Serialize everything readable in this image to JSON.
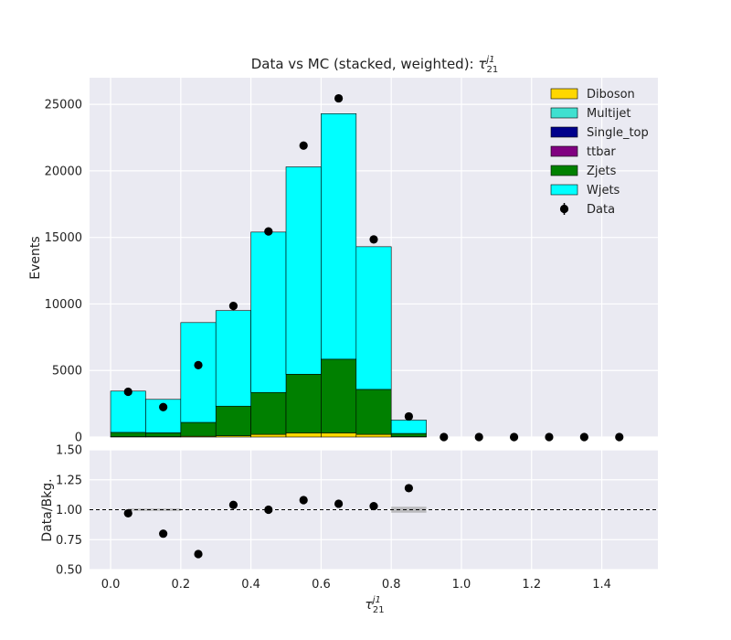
{
  "chart_data": [
    {
      "type": "bar",
      "subtype": "stacked-histogram",
      "title": "Data vs MC (stacked, weighted): ",
      "title_math": "τ",
      "title_math_sub": "21",
      "title_math_sup": "j1",
      "ylabel": "Events",
      "xlim": [
        -0.06,
        1.56
      ],
      "ylim": [
        0,
        27000
      ],
      "yticks": [
        0,
        5000,
        10000,
        15000,
        20000,
        25000
      ],
      "ytick_labels": [
        "0",
        "5000",
        "10000",
        "15000",
        "20000",
        "25000"
      ],
      "grid": true,
      "legend_position": "top-right",
      "bin_edges": [
        0.0,
        0.1,
        0.2,
        0.3,
        0.4,
        0.5,
        0.6,
        0.7,
        0.8,
        0.9,
        1.0,
        1.1,
        1.2,
        1.3,
        1.4,
        1.5
      ],
      "series": [
        {
          "name": "Diboson",
          "color": "#FFD700",
          "values": [
            30,
            30,
            60,
            90,
            200,
            300,
            300,
            200,
            30,
            0,
            0,
            0,
            0,
            0,
            0
          ]
        },
        {
          "name": "Multijet",
          "color": "#40E0D0",
          "values": [
            0,
            0,
            0,
            0,
            0,
            0,
            0,
            0,
            0,
            0,
            0,
            0,
            0,
            0,
            0
          ]
        },
        {
          "name": "Single_top",
          "color": "#00008B",
          "values": [
            0,
            0,
            0,
            0,
            0,
            0,
            0,
            0,
            0,
            0,
            0,
            0,
            0,
            0,
            0
          ]
        },
        {
          "name": "ttbar",
          "color": "#800080",
          "values": [
            0,
            0,
            0,
            0,
            0,
            0,
            0,
            0,
            0,
            0,
            0,
            0,
            0,
            0,
            0
          ]
        },
        {
          "name": "Zjets",
          "color": "#008000",
          "values": [
            320,
            290,
            1040,
            2230,
            3150,
            4420,
            5550,
            3380,
            240,
            0,
            0,
            0,
            0,
            0,
            0
          ]
        },
        {
          "name": "Wjets",
          "color": "#00FFFF",
          "values": [
            3100,
            2510,
            7500,
            7180,
            12050,
            15580,
            18450,
            10720,
            1000,
            0,
            0,
            0,
            0,
            0,
            0
          ]
        }
      ],
      "data": {
        "name": "Data",
        "x": [
          0.05,
          0.15,
          0.25,
          0.35,
          0.45,
          0.55,
          0.65,
          0.75,
          0.85,
          0.95,
          1.05,
          1.15,
          1.25,
          1.35,
          1.45
        ],
        "y": [
          3400,
          2250,
          5400,
          9850,
          15450,
          21900,
          25450,
          14850,
          1550,
          0,
          0,
          0,
          0,
          0,
          0
        ]
      }
    },
    {
      "type": "scatter",
      "subtype": "ratio",
      "xlabel": "τ",
      "xlabel_sub": "21",
      "xlabel_sup": "j1",
      "ylabel": "Data/Bkg.",
      "xlim": [
        -0.06,
        1.56
      ],
      "ylim": [
        0.5,
        1.5
      ],
      "xticks": [
        0.0,
        0.2,
        0.4,
        0.6,
        0.8,
        1.0,
        1.2,
        1.4
      ],
      "xtick_labels": [
        "0.0",
        "0.2",
        "0.4",
        "0.6",
        "0.8",
        "1.0",
        "1.2",
        "1.4"
      ],
      "yticks": [
        0.5,
        0.75,
        1.0,
        1.25,
        1.5
      ],
      "ytick_labels": [
        "0.50",
        "0.75",
        "1.00",
        "1.25",
        "1.50"
      ],
      "reference_line": 1.0,
      "grid": true,
      "points": {
        "x": [
          0.05,
          0.15,
          0.25,
          0.35,
          0.45,
          0.55,
          0.65,
          0.75,
          0.85
        ],
        "y": [
          0.97,
          0.8,
          0.63,
          1.04,
          1.0,
          1.08,
          1.05,
          1.03,
          1.18
        ]
      },
      "uncertainty_bands": [
        {
          "x0": 0.05,
          "x1": 0.2,
          "y0": 0.99,
          "y1": 1.01
        },
        {
          "x0": 0.8,
          "x1": 0.9,
          "y0": 0.975,
          "y1": 1.025
        }
      ]
    }
  ]
}
